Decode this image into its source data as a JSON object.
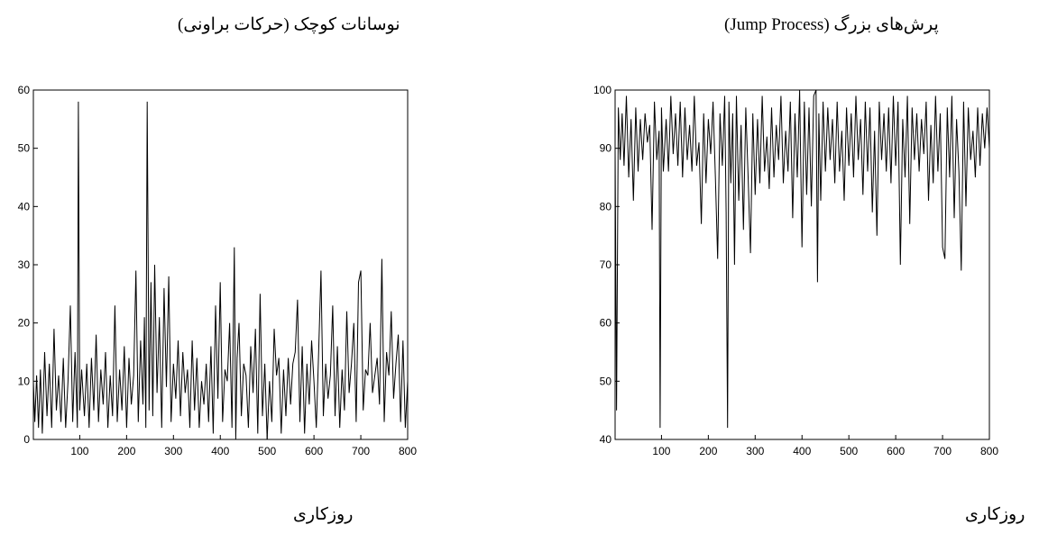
{
  "charts": [
    {
      "title": "نوسانات کوچک (حرکات براونی)",
      "xlabel": "روزکاری"
    },
    {
      "title": "پرش‌های بزرگ (Jump Process)",
      "xlabel": "روزکاری"
    }
  ],
  "chart_data": [
    {
      "type": "line",
      "title": "نوسانات کوچک (حرکات براونی)",
      "xlabel": "روزکاری",
      "ylabel": "",
      "xlim": [
        1,
        800
      ],
      "ylim": [
        0,
        60
      ],
      "xticks": [
        100,
        200,
        300,
        400,
        500,
        600,
        700,
        800
      ],
      "yticks": [
        0,
        10,
        20,
        30,
        40,
        50,
        60
      ],
      "grid": false,
      "legend": "none",
      "series": [
        {
          "color": "#000000",
          "x": [
            1,
            4,
            8,
            12,
            16,
            20,
            25,
            30,
            35,
            40,
            45,
            50,
            55,
            60,
            65,
            70,
            75,
            80,
            85,
            90,
            95,
            97,
            100,
            104,
            110,
            115,
            120,
            125,
            130,
            135,
            140,
            145,
            150,
            155,
            160,
            165,
            170,
            175,
            180,
            185,
            190,
            195,
            200,
            205,
            210,
            215,
            220,
            225,
            230,
            235,
            238,
            241,
            244,
            248,
            252,
            256,
            260,
            265,
            270,
            275,
            280,
            285,
            290,
            295,
            300,
            305,
            310,
            315,
            320,
            325,
            330,
            335,
            340,
            345,
            350,
            355,
            360,
            365,
            370,
            375,
            380,
            385,
            390,
            395,
            400,
            405,
            410,
            415,
            420,
            425,
            430,
            433,
            436,
            440,
            445,
            450,
            455,
            460,
            465,
            470,
            475,
            480,
            485,
            490,
            495,
            500,
            505,
            510,
            515,
            520,
            525,
            530,
            535,
            540,
            545,
            550,
            555,
            560,
            565,
            570,
            575,
            580,
            585,
            590,
            595,
            600,
            605,
            610,
            615,
            620,
            625,
            630,
            635,
            640,
            645,
            650,
            655,
            660,
            665,
            670,
            675,
            680,
            685,
            690,
            695,
            700,
            705,
            710,
            715,
            720,
            725,
            730,
            735,
            740,
            745,
            750,
            755,
            760,
            765,
            770,
            775,
            780,
            785,
            790,
            795,
            800
          ],
          "y": [
            10,
            3,
            11,
            2,
            12,
            1,
            15,
            4,
            13,
            2,
            19,
            5,
            11,
            3,
            14,
            2,
            10,
            23,
            3,
            15,
            2,
            58,
            5,
            12,
            4,
            13,
            2,
            14,
            5,
            18,
            3,
            12,
            6,
            15,
            2,
            11,
            4,
            23,
            3,
            12,
            5,
            16,
            2,
            14,
            6,
            11,
            29,
            3,
            17,
            6,
            21,
            2,
            58,
            5,
            27,
            4,
            30,
            8,
            21,
            2,
            26,
            9,
            28,
            3,
            13,
            7,
            17,
            4,
            15,
            8,
            12,
            2,
            17,
            5,
            14,
            2,
            10,
            6,
            13,
            3,
            16,
            1,
            23,
            7,
            27,
            3,
            12,
            10,
            20,
            2,
            33,
            0,
            14,
            20,
            4,
            13,
            11,
            2,
            16,
            8,
            19,
            1,
            25,
            4,
            13,
            0,
            10,
            3,
            19,
            11,
            14,
            1,
            12,
            4,
            14,
            6,
            13,
            15,
            24,
            3,
            16,
            1,
            13,
            6,
            17,
            10,
            2,
            15,
            29,
            4,
            13,
            7,
            11,
            23,
            4,
            16,
            2,
            12,
            5,
            22,
            8,
            13,
            20,
            3,
            27,
            29,
            5,
            12,
            11,
            20,
            8,
            11,
            14,
            6,
            31,
            3,
            15,
            11,
            22,
            7,
            13,
            18,
            3,
            17,
            2,
            10
          ]
        }
      ]
    },
    {
      "type": "line",
      "title": "پرش‌های بزرگ (Jump Process)",
      "xlabel": "روزکاری",
      "ylabel": "",
      "xlim": [
        1,
        800
      ],
      "ylim": [
        40,
        100
      ],
      "xticks": [
        100,
        200,
        300,
        400,
        500,
        600,
        700,
        800
      ],
      "yticks": [
        40,
        50,
        60,
        70,
        80,
        90,
        100
      ],
      "grid": false,
      "legend": "none",
      "series": [
        {
          "color": "#000000",
          "x": [
            1,
            4,
            8,
            12,
            16,
            20,
            25,
            30,
            35,
            40,
            45,
            50,
            55,
            60,
            65,
            70,
            75,
            80,
            85,
            90,
            95,
            97,
            100,
            104,
            110,
            115,
            120,
            125,
            130,
            135,
            140,
            145,
            150,
            155,
            160,
            165,
            170,
            175,
            180,
            185,
            190,
            195,
            200,
            205,
            210,
            215,
            220,
            225,
            230,
            235,
            238,
            241,
            244,
            248,
            252,
            256,
            260,
            265,
            270,
            275,
            280,
            285,
            290,
            295,
            300,
            305,
            310,
            315,
            320,
            325,
            330,
            335,
            340,
            345,
            350,
            355,
            360,
            365,
            370,
            375,
            380,
            385,
            390,
            395,
            400,
            405,
            410,
            415,
            420,
            425,
            430,
            433,
            436,
            440,
            445,
            450,
            455,
            460,
            465,
            470,
            475,
            480,
            485,
            490,
            495,
            500,
            505,
            510,
            515,
            520,
            525,
            530,
            535,
            540,
            545,
            550,
            555,
            560,
            565,
            570,
            575,
            580,
            585,
            590,
            595,
            600,
            605,
            610,
            615,
            620,
            625,
            630,
            635,
            640,
            645,
            650,
            655,
            660,
            665,
            670,
            675,
            680,
            685,
            690,
            695,
            700,
            705,
            710,
            715,
            720,
            725,
            730,
            735,
            740,
            745,
            750,
            755,
            760,
            765,
            770,
            775,
            780,
            785,
            790,
            795,
            800
          ],
          "y": [
            90,
            45,
            97,
            88,
            96,
            87,
            99,
            85,
            95,
            81,
            97,
            86,
            95,
            88,
            96,
            91,
            94,
            76,
            98,
            88,
            93,
            42,
            97,
            86,
            95,
            86,
            99,
            89,
            96,
            87,
            98,
            85,
            97,
            88,
            94,
            86,
            99,
            87,
            91,
            77,
            96,
            84,
            95,
            89,
            98,
            85,
            71,
            96,
            87,
            99,
            79,
            42,
            98,
            84,
            96,
            70,
            99,
            81,
            94,
            76,
            97,
            85,
            72,
            96,
            82,
            95,
            84,
            99,
            86,
            92,
            83,
            97,
            85,
            94,
            88,
            99,
            84,
            93,
            86,
            98,
            78,
            96,
            85,
            100,
            73,
            98,
            82,
            97,
            80,
            99,
            100,
            67,
            96,
            81,
            98,
            86,
            97,
            88,
            95,
            84,
            98,
            86,
            93,
            81,
            97,
            87,
            96,
            85,
            99,
            88,
            95,
            82,
            98,
            86,
            97,
            79,
            93,
            75,
            98,
            88,
            96,
            86,
            97,
            84,
            99,
            87,
            98,
            70,
            95,
            85,
            99,
            77,
            97,
            88,
            96,
            86,
            95,
            89,
            98,
            81,
            94,
            84,
            99,
            86,
            96,
            73,
            71,
            97,
            85,
            99,
            78,
            95,
            86,
            69,
            98,
            80,
            97,
            88,
            93,
            85,
            97,
            87,
            96,
            90,
            97,
            90
          ]
        }
      ]
    }
  ]
}
